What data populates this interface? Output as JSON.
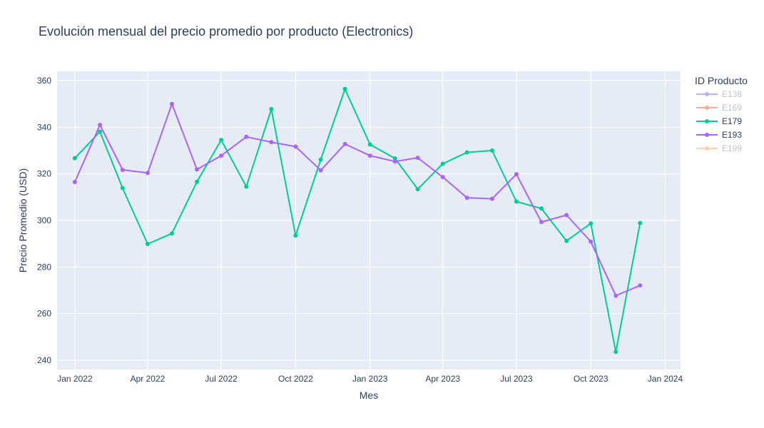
{
  "chart_data": {
    "type": "line",
    "title": "Evolución mensual del precio promedio por producto (Electronics)",
    "xlabel": "Mes",
    "ylabel": "Precio Promedio (USD)",
    "x_tick_labels": [
      "Jan 2022",
      "Apr 2022",
      "Jul 2022",
      "Oct 2022",
      "Jan 2023",
      "Apr 2023",
      "Jul 2023",
      "Oct 2023",
      "Jan 2024"
    ],
    "y_ticks": [
      240,
      260,
      280,
      300,
      320,
      340,
      360
    ],
    "ylim": [
      236,
      364
    ],
    "xlim": [
      "2021-12-10",
      "2024-01-20"
    ],
    "grid": true,
    "legend": {
      "title": "ID Producto",
      "placement": "right",
      "items": [
        {
          "name": "E138",
          "color": "#636efa",
          "hidden": true
        },
        {
          "name": "E169",
          "color": "#ef553b",
          "hidden": true
        },
        {
          "name": "E179",
          "color": "#00cc96",
          "hidden": false
        },
        {
          "name": "E193",
          "color": "#ab63fa",
          "hidden": false
        },
        {
          "name": "E199",
          "color": "#ffa15a",
          "hidden": true
        }
      ]
    },
    "x": [
      "2022-01",
      "2022-02",
      "2022-03",
      "2022-04",
      "2022-05",
      "2022-06",
      "2022-07",
      "2022-08",
      "2022-09",
      "2022-10",
      "2022-11",
      "2022-12",
      "2023-01",
      "2023-02",
      "2023-03",
      "2023-04",
      "2023-05",
      "2023-06",
      "2023-07",
      "2023-08",
      "2023-09",
      "2023-10",
      "2023-11",
      "2023-12"
    ],
    "series": [
      {
        "name": "E179",
        "color": "#00cc96",
        "values": [
          326.7,
          338.1,
          313.9,
          289.9,
          294.4,
          316.6,
          334.5,
          314.5,
          347.8,
          293.5,
          326.1,
          356.4,
          332.6,
          326.6,
          313.4,
          324.3,
          329.2,
          330.0,
          308.1,
          305.1,
          291.2,
          298.7,
          243.6,
          298.9
        ]
      },
      {
        "name": "E193",
        "color": "#ab63fa",
        "values": [
          316.5,
          341.0,
          321.7,
          320.4,
          350.0,
          321.9,
          327.8,
          335.9,
          333.6,
          331.7,
          321.5,
          332.8,
          327.8,
          325.3,
          326.9,
          318.6,
          309.7,
          309.3,
          319.8,
          299.3,
          302.3,
          290.9,
          267.7,
          272.1
        ]
      }
    ]
  }
}
